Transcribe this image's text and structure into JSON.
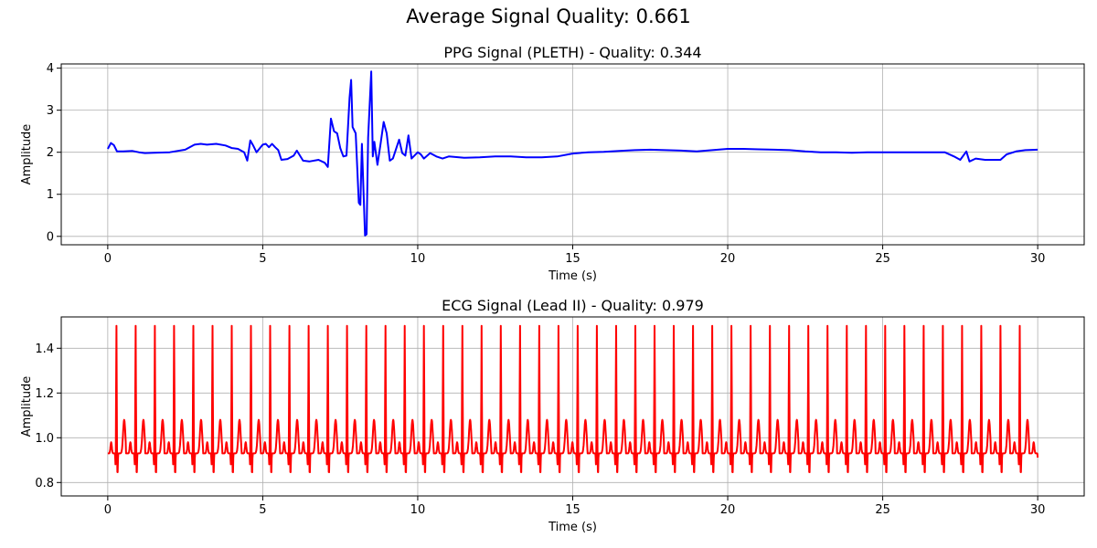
{
  "figure": {
    "title": "Average Signal Quality: 0.661"
  },
  "chart_data": [
    {
      "type": "line",
      "title": "PPG Signal (PLETH) - Quality: 0.344",
      "xlabel": "Time (s)",
      "ylabel": "Amplitude",
      "xlim": [
        -1.5,
        31.5
      ],
      "ylim": [
        -0.2,
        4.1
      ],
      "xticks": [
        0,
        5,
        10,
        15,
        20,
        25,
        30
      ],
      "yticks": [
        0,
        1,
        2,
        3,
        4
      ],
      "grid": true,
      "series": [
        {
          "color": "#0000ff",
          "x": [
            0.0,
            0.1,
            0.2,
            0.3,
            0.5,
            0.8,
            1.0,
            1.2,
            1.5,
            2.0,
            2.5,
            2.8,
            3.0,
            3.2,
            3.5,
            3.8,
            4.0,
            4.2,
            4.4,
            4.5,
            4.6,
            4.7,
            4.8,
            5.0,
            5.1,
            5.2,
            5.3,
            5.4,
            5.5,
            5.6,
            5.8,
            6.0,
            6.1,
            6.3,
            6.5,
            6.8,
            7.0,
            7.1,
            7.2,
            7.3,
            7.4,
            7.5,
            7.6,
            7.7,
            7.8,
            7.85,
            7.9,
            8.0,
            8.1,
            8.15,
            8.2,
            8.3,
            8.35,
            8.4,
            8.5,
            8.55,
            8.6,
            8.7,
            8.8,
            8.9,
            9.0,
            9.1,
            9.2,
            9.4,
            9.5,
            9.6,
            9.7,
            9.8,
            10.0,
            10.1,
            10.2,
            10.4,
            10.6,
            10.8,
            11.0,
            11.5,
            12.0,
            12.5,
            13.0,
            13.5,
            14.0,
            14.5,
            15.0,
            15.5,
            16.0,
            16.5,
            17.0,
            17.5,
            18.0,
            18.5,
            19.0,
            19.5,
            20.0,
            20.5,
            21.0,
            21.5,
            22.0,
            22.5,
            23.0,
            23.5,
            24.0,
            24.5,
            25.0,
            25.5,
            26.0,
            26.5,
            27.0,
            27.3,
            27.5,
            27.7,
            27.8,
            28.0,
            28.3,
            28.6,
            28.8,
            29.0,
            29.3,
            29.6,
            30.0
          ],
          "y": [
            2.08,
            2.22,
            2.17,
            2.02,
            2.02,
            2.03,
            2.0,
            1.98,
            1.99,
            2.0,
            2.06,
            2.18,
            2.2,
            2.18,
            2.2,
            2.16,
            2.1,
            2.08,
            2.0,
            1.8,
            2.28,
            2.15,
            2.0,
            2.18,
            2.2,
            2.12,
            2.2,
            2.12,
            2.05,
            1.82,
            1.84,
            1.92,
            2.04,
            1.8,
            1.78,
            1.82,
            1.75,
            1.65,
            2.8,
            2.5,
            2.45,
            2.1,
            1.9,
            1.92,
            3.3,
            3.72,
            2.6,
            2.45,
            0.8,
            0.75,
            2.2,
            0.02,
            0.05,
            2.35,
            3.92,
            1.9,
            2.25,
            1.7,
            2.2,
            2.72,
            2.45,
            1.8,
            1.85,
            2.3,
            1.98,
            1.92,
            2.4,
            1.85,
            2.0,
            1.95,
            1.85,
            1.98,
            1.9,
            1.85,
            1.9,
            1.87,
            1.88,
            1.9,
            1.9,
            1.88,
            1.88,
            1.9,
            1.97,
            2.0,
            2.01,
            2.03,
            2.05,
            2.06,
            2.05,
            2.04,
            2.02,
            2.05,
            2.08,
            2.08,
            2.07,
            2.06,
            2.05,
            2.02,
            2.0,
            2.0,
            1.99,
            2.0,
            2.0,
            2.0,
            2.0,
            2.0,
            2.0,
            1.9,
            1.82,
            2.02,
            1.78,
            1.85,
            1.82,
            1.82,
            1.82,
            1.95,
            2.02,
            2.05,
            2.06
          ]
        }
      ]
    },
    {
      "type": "line",
      "title": "ECG Signal (Lead II) - Quality: 0.979",
      "xlabel": "Time (s)",
      "ylabel": "Amplitude",
      "xlim": [
        -1.5,
        31.5
      ],
      "ylim": [
        0.74,
        1.54
      ],
      "xticks": [
        0,
        5,
        10,
        15,
        20,
        25,
        30
      ],
      "yticks": [
        0.8,
        1.0,
        1.2,
        1.4
      ],
      "grid": true,
      "series": [
        {
          "color": "#ff0000",
          "beat_period": 0.62,
          "first_beat": 0.28,
          "last_time": 30.0,
          "baseline": 0.93,
          "r_peak": 1.5,
          "t_wave": 1.08,
          "trough": 0.82
        }
      ]
    }
  ]
}
